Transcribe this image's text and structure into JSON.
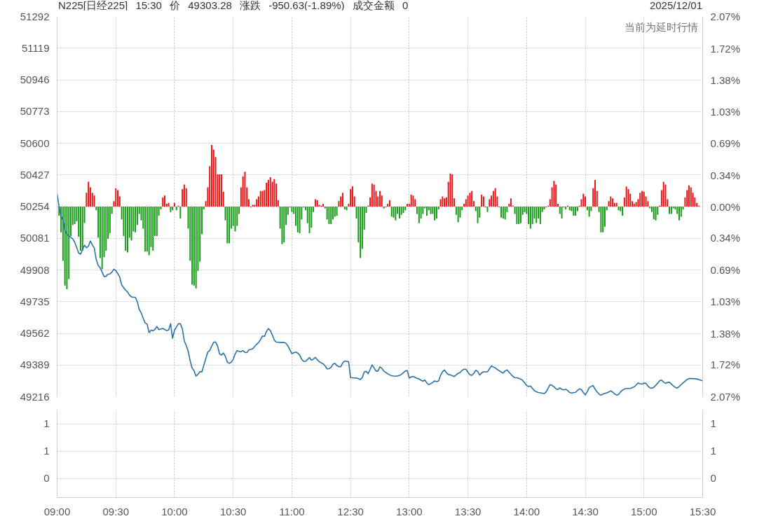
{
  "chart_data": [
    {
      "type": "bar",
      "title": "N225[日经225] 15:30 价 49303.28 涨跌 -950.63(-1.89%) 成交金额 0",
      "subtitle": "2025/12/01",
      "annotations": [
        "当前为延时行情"
      ],
      "categories": [
        null,
        null,
        null,
        null,
        null,
        null,
        null,
        null,
        null,
        null,
        null,
        null,
        null,
        null,
        null,
        null,
        null,
        null,
        null,
        null,
        null,
        null,
        null,
        null,
        null,
        null,
        null,
        null,
        null,
        null,
        null,
        null,
        null,
        null,
        null,
        null,
        null,
        null,
        null,
        null,
        null,
        null,
        null,
        null,
        null,
        null,
        null,
        null,
        null,
        null,
        null,
        null,
        null,
        null,
        null,
        null,
        null,
        null,
        null,
        null,
        null,
        null,
        null,
        null,
        null,
        null,
        null,
        null,
        null,
        null,
        null,
        null,
        null,
        null,
        null,
        null,
        null,
        null,
        null,
        null,
        null,
        null,
        null,
        null,
        null,
        null,
        null,
        null,
        null,
        null,
        null,
        null,
        null,
        null,
        null,
        null,
        null,
        null,
        null,
        null,
        null,
        null,
        null,
        null,
        null,
        null,
        null,
        null,
        null,
        null,
        null,
        null,
        null,
        null,
        null,
        null,
        null,
        null,
        null,
        null,
        null,
        null,
        null,
        null,
        null,
        null,
        null,
        null,
        null,
        null,
        null,
        null,
        null,
        null,
        null,
        null,
        null,
        null,
        null,
        null,
        null,
        null,
        null,
        null,
        null,
        null,
        null,
        null,
        null,
        null,
        null,
        null,
        null,
        null,
        null,
        null,
        null,
        null,
        null,
        null,
        null,
        null,
        null,
        null,
        null,
        null,
        null,
        null,
        null,
        null,
        null,
        null,
        null,
        null,
        null,
        null,
        null,
        null,
        null,
        null,
        null,
        null,
        null,
        null,
        null,
        null,
        null,
        null,
        null,
        null,
        null,
        null,
        null,
        null,
        null,
        null,
        null,
        null,
        null,
        null,
        null,
        null,
        null,
        null,
        null,
        null,
        null,
        null,
        null,
        null,
        null,
        null,
        null,
        null,
        null,
        null,
        null,
        null,
        null,
        null,
        null,
        null,
        null,
        null,
        null,
        null,
        null,
        null,
        null,
        null,
        null,
        null,
        null,
        null,
        null,
        null,
        null,
        null,
        null,
        null,
        null,
        null,
        null,
        null,
        null,
        null,
        null,
        null,
        null,
        null,
        null,
        null,
        null,
        null,
        null,
        null,
        null,
        null,
        null,
        null,
        null,
        null,
        null,
        null,
        null,
        null,
        null,
        null,
        null,
        null,
        null,
        null,
        null,
        null,
        null,
        null,
        null,
        null,
        null,
        null,
        null,
        null,
        null,
        null,
        null,
        null,
        null,
        null,
        null,
        null,
        null,
        null,
        null,
        null,
        null,
        null,
        null,
        null,
        null,
        null,
        null,
        null,
        null,
        null,
        null,
        null,
        null,
        null,
        null,
        null,
        null,
        null,
        null,
        null,
        null,
        null,
        null,
        null,
        null,
        null,
        null,
        null,
        null,
        null,
        null,
        null,
        null,
        null,
        null,
        null,
        null
      ],
      "ylim": [
        49216,
        51292
      ],
      "yticks": [
        49216,
        49389,
        49562,
        49735,
        49908,
        50081,
        50254,
        50427,
        50600,
        50773,
        50946,
        51119,
        51292
      ],
      "y2lim": [
        -2.07,
        2.07
      ],
      "y2ticks": [
        {
          "value": -2.07,
          "label": "2.07%"
        },
        {
          "value": -1.72,
          "label": "1.72%"
        },
        {
          "value": -1.38,
          "label": "1.38%"
        },
        {
          "value": -1.03,
          "label": "1.03%"
        },
        {
          "value": -0.69,
          "label": "0.69%"
        },
        {
          "value": -0.34,
          "label": "0.34%"
        },
        {
          "value": 0,
          "label": "0.00%"
        },
        {
          "value": 0.34,
          "label": "0.34%"
        },
        {
          "value": 0.69,
          "label": "0.69%"
        },
        {
          "value": 1.03,
          "label": "1.03%"
        },
        {
          "value": 1.38,
          "label": "1.38%"
        },
        {
          "value": 1.72,
          "label": "1.72%"
        },
        {
          "value": 2.07,
          "label": "2.07%"
        }
      ],
      "grid": true,
      "tick_labels": "y",
      "series": [
        {
          "axis": "y2",
          "color": "#ee1111",
          "values": [
            null,
            null,
            null,
            null,
            null,
            null,
            null,
            null,
            null,
            null,
            null,
            null,
            null,
            null,
            null,
            0.15,
            0.27,
            0.21,
            0.15,
            0.12,
            null,
            null,
            null,
            null,
            null,
            null,
            null,
            null,
            null,
            0.06,
            0.2,
            0.18,
            0.11,
            null,
            null,
            null,
            null,
            null,
            null,
            null,
            null,
            null,
            null,
            null,
            null,
            null,
            null,
            null,
            null,
            null,
            null,
            null,
            null,
            null,
            0.1,
            0.12,
            0.03,
            0.04,
            null,
            null,
            0.04,
            null,
            0.01,
            null,
            0.19,
            0.24,
            0.2,
            null,
            null,
            null,
            null,
            null,
            null,
            null,
            null,
            null,
            0.06,
            0.21,
            0.44,
            0.67,
            0.62,
            0.54,
            0.35,
            0.35,
            0.35,
            0.16,
            null,
            null,
            null,
            null,
            null,
            null,
            null,
            null,
            0.21,
            0.33,
            0.38,
            0.21,
            0.08,
            null,
            0.02,
            0.02,
            0.08,
            0.11,
            0.17,
            0.17,
            0.18,
            0.26,
            0.29,
            0.32,
            0.27,
            0.3,
            0.25,
            0.07,
            null,
            null,
            null,
            null,
            null,
            null,
            null,
            null,
            null,
            null,
            null,
            null,
            null,
            null,
            null,
            null,
            null,
            null,
            0.08,
            0.07,
            0.02,
            0.01,
            0.03,
            null,
            null,
            null,
            null,
            null,
            null,
            null,
            0.06,
            0.11,
            0.15,
            null,
            null,
            0.03,
            0.19,
            0.22,
            0.11,
            null,
            null,
            null,
            null,
            null,
            null,
            0.01,
            0.1,
            0.25,
            0.24,
            0.17,
            0.11,
            0.17,
            0.12,
            null,
            null,
            0.03,
            0.07,
            null,
            null,
            null,
            null,
            null,
            null,
            null,
            null,
            0.03,
            0.03,
            0.13,
            0.12,
            0.08,
            null,
            null,
            null,
            null,
            null,
            null,
            null,
            null,
            null,
            null,
            null,
            null,
            0.08,
            0.11,
            0.09,
            0.1,
            0.27,
            0.36,
            0.35,
            0.09,
            null,
            null,
            null,
            null,
            0.03,
            0.08,
            0.12,
            0.15,
            0.17,
            0.06,
            null,
            null,
            null,
            0.13,
            0.11,
            null,
            null,
            0.08,
            0.12,
            0.17,
            0.2,
            0.11,
            null,
            null,
            null,
            null,
            null,
            0.03,
            0.09,
            0.01,
            null,
            null,
            null,
            null,
            null,
            null,
            null,
            null,
            null,
            null,
            null,
            null,
            null,
            null,
            null,
            null,
            null,
            0.01,
            0.08,
            0.21,
            0.28,
            0.24,
            0.03,
            null,
            null,
            null,
            null,
            0.01,
            null,
            null,
            null,
            null,
            null,
            0.01,
            0.08,
            0.14,
            0.11,
            null,
            null,
            null,
            0.2,
            0.29,
            0.17,
            null,
            null,
            null,
            null,
            null,
            0.06,
            0.11,
            0.09,
            0.04,
            0.04,
            null,
            null,
            null,
            0.1,
            0.22,
            0.19,
            0.14,
            0.06,
            0.03,
            0.05,
            0.08,
            0.15,
            0.17,
            0.16,
            0.11,
            0.06,
            null,
            null,
            null,
            null,
            null,
            0.01,
            0.18,
            0.27,
            0.24,
            0.08,
            null,
            null,
            null,
            null,
            null,
            null,
            null,
            null,
            0.1,
            0.18,
            0.23,
            0.21,
            0.15,
            0.1,
            0.04,
            0.01,
            null,
            null
          ]
        },
        {
          "axis": "y2",
          "color": "#139a13",
          "values": [
            null,
            -0.1,
            -0.28,
            -0.59,
            -0.86,
            -0.9,
            -0.79,
            -0.32,
            -0.2,
            -0.19,
            -0.16,
            -0.33,
            -0.48,
            -0.48,
            -0.18,
            null,
            null,
            null,
            null,
            null,
            -0.04,
            -0.34,
            -0.56,
            -0.68,
            -0.55,
            -0.48,
            -0.35,
            -0.29,
            -0.08,
            null,
            null,
            null,
            null,
            -0.14,
            -0.32,
            -0.48,
            -0.5,
            -0.34,
            -0.37,
            -0.27,
            -0.28,
            -0.2,
            -0.08,
            -0.15,
            -0.24,
            -0.49,
            -0.49,
            -0.53,
            -0.44,
            -0.48,
            -0.32,
            -0.32,
            -0.1,
            -0.03,
            null,
            null,
            null,
            null,
            -0.06,
            -0.04,
            null,
            -0.04,
            null,
            -0.13,
            null,
            null,
            null,
            -0.24,
            -0.59,
            -0.85,
            -0.86,
            -0.89,
            -0.7,
            -0.6,
            -0.3,
            -0.03,
            null,
            null,
            null,
            null,
            null,
            null,
            null,
            null,
            null,
            null,
            -0.15,
            -0.4,
            -0.4,
            -0.24,
            -0.21,
            -0.27,
            -0.21,
            -0.08,
            null,
            null,
            null,
            null,
            null,
            -0.01,
            null,
            null,
            null,
            null,
            null,
            null,
            null,
            null,
            null,
            null,
            null,
            null,
            null,
            null,
            -0.24,
            -0.41,
            -0.39,
            -0.2,
            -0.09,
            -0.01,
            -0.06,
            -0.08,
            -0.21,
            -0.28,
            -0.29,
            -0.14,
            -0.01,
            -0.04,
            -0.18,
            -0.29,
            -0.23,
            -0.06,
            null,
            null,
            null,
            null,
            null,
            -0.02,
            -0.14,
            -0.19,
            -0.19,
            -0.14,
            -0.11,
            -0.1,
            null,
            null,
            null,
            -0.03,
            -0.04,
            null,
            null,
            null,
            null,
            -0.13,
            -0.39,
            -0.56,
            -0.46,
            -0.25,
            -0.07,
            null,
            null,
            null,
            null,
            null,
            null,
            null,
            null,
            -0.02,
            -0.01,
            null,
            null,
            -0.11,
            -0.12,
            -0.15,
            -0.08,
            -0.13,
            -0.09,
            -0.07,
            -0.04,
            null,
            null,
            null,
            null,
            null,
            -0.08,
            -0.18,
            -0.13,
            -0.08,
            -0.02,
            -0.1,
            -0.04,
            -0.08,
            -0.08,
            -0.15,
            -0.13,
            -0.03,
            null,
            null,
            null,
            null,
            null,
            null,
            null,
            null,
            -0.09,
            -0.17,
            -0.12,
            -0.04,
            null,
            null,
            null,
            null,
            null,
            null,
            -0.05,
            -0.18,
            -0.12,
            null,
            null,
            -0.01,
            -0.06,
            null,
            null,
            null,
            null,
            null,
            -0.01,
            -0.12,
            -0.13,
            -0.14,
            -0.06,
            null,
            null,
            null,
            -0.08,
            -0.19,
            -0.19,
            -0.18,
            -0.09,
            -0.06,
            -0.08,
            -0.19,
            -0.24,
            -0.19,
            -0.13,
            -0.18,
            -0.13,
            -0.19,
            -0.06,
            -0.03,
            -0.01,
            null,
            null,
            null,
            null,
            null,
            null,
            -0.08,
            -0.13,
            -0.01,
            -0.03,
            null,
            -0.04,
            -0.05,
            -0.1,
            -0.1,
            -0.05,
            null,
            null,
            null,
            null,
            -0.04,
            -0.11,
            -0.05,
            null,
            null,
            null,
            -0.06,
            -0.28,
            -0.28,
            -0.22,
            -0.04,
            null,
            null,
            null,
            null,
            null,
            -0.04,
            -0.05,
            -0.1,
            null,
            null,
            null,
            null,
            null,
            null,
            null,
            null,
            null,
            null,
            null,
            null,
            null,
            -0.02,
            -0.06,
            -0.14,
            -0.15,
            -0.09,
            null,
            null,
            null,
            null,
            null,
            -0.08,
            -0.08,
            -0.02,
            -0.03,
            -0.08,
            -0.15,
            -0.11,
            -0.03,
            null,
            null,
            null,
            null,
            null,
            null,
            null,
            null,
            null,
            null
          ]
        },
        {
          "type": "line",
          "color": "#2a72a6",
          "values": [
            50322,
            50254,
            50201,
            50181,
            50122,
            50103,
            50094,
            50086,
            50078,
            50059,
            50030,
            50001,
            49994,
            50020,
            50043,
            50029,
            50038,
            50066,
            50044,
            50028,
            49964,
            49933,
            49920,
            49897,
            49872,
            49873,
            49885,
            49886,
            49896,
            49912,
            49904,
            49888,
            49868,
            49827,
            49811,
            49798,
            49788,
            49771,
            49761,
            49759,
            49759,
            49734,
            49692,
            49673,
            49644,
            49619,
            49612,
            49566,
            49579,
            49576,
            49583,
            49600,
            49582,
            49585,
            49589,
            49583,
            49577,
            49580,
            49615,
            49535,
            49579,
            49597,
            49614,
            49614,
            49587,
            49521,
            49495,
            49465,
            49412,
            49373,
            49358,
            49329,
            49338,
            49353,
            49352,
            49388,
            49424,
            49459,
            49468,
            49492,
            49513,
            49515,
            49494,
            49450,
            49443,
            49455,
            49436,
            49405,
            49398,
            49404,
            49419,
            49450,
            49468,
            49463,
            49461,
            49468,
            49458,
            49457,
            49472,
            49474,
            49478,
            49490,
            49502,
            49512,
            49528,
            49548,
            49545,
            49572,
            49588,
            49577,
            49554,
            49526,
            49514,
            49513,
            49512,
            49512,
            49512,
            49507,
            49493,
            49472,
            49451,
            49456,
            49460,
            49454,
            49443,
            49420,
            49409,
            49409,
            49419,
            49430,
            49416,
            49421,
            49431,
            49418,
            49407,
            49401,
            49395,
            49384,
            49368,
            49369,
            49376,
            49393,
            49399,
            49386,
            49380,
            49380,
            49401,
            49411,
            49409,
            49407,
            49320,
            49319,
            49318,
            49318,
            49314,
            49310,
            49321,
            49352,
            49354,
            49342,
            49365,
            49390,
            49374,
            49356,
            49356,
            49379,
            49371,
            49356,
            49348,
            49341,
            49335,
            49331,
            49329,
            49328,
            49330,
            49332,
            49338,
            49347,
            49356,
            49359,
            49318,
            49324,
            49327,
            49321,
            49316,
            49313,
            49306,
            49301,
            49307,
            49291,
            49282,
            49287,
            49294,
            49302,
            49298,
            49302,
            49332,
            49352,
            49362,
            49347,
            49337,
            49335,
            49331,
            49326,
            49335,
            49344,
            49348,
            49360,
            49366,
            49366,
            49349,
            49336,
            49333,
            49343,
            49361,
            49353,
            49334,
            49346,
            49352,
            49352,
            49352,
            49368,
            49384,
            49378,
            49373,
            49365,
            49358,
            49351,
            49345,
            49357,
            49362,
            49350,
            49338,
            49327,
            49320,
            49319,
            49316,
            49312,
            49304,
            49292,
            49277,
            49272,
            49274,
            49261,
            49249,
            49243,
            49239,
            49237,
            49235,
            49233,
            49242,
            49262,
            49282,
            49278,
            49270,
            49259,
            49255,
            49264,
            49256,
            49253,
            49256,
            49250,
            49239,
            49236,
            49238,
            49240,
            49250,
            49259,
            49255,
            49239,
            49226,
            49243,
            49266,
            49272,
            49277,
            49257,
            49243,
            49230,
            49224,
            49230,
            49234,
            49237,
            49242,
            49248,
            49241,
            49231,
            49225,
            49228,
            49242,
            49252,
            49258,
            49261,
            49261,
            49261,
            49266,
            49270,
            49280,
            49291,
            49287,
            49285,
            49290,
            49289,
            49274,
            49265,
            49262,
            49267,
            49278,
            49290,
            49303,
            49307,
            49296,
            49289,
            49294,
            49295,
            49285,
            49275,
            49267,
            49263,
            49272,
            49282,
            49292,
            49301,
            49310,
            49315,
            49315,
            49315,
            49314,
            49313,
            49310,
            49306,
            49303
          ]
        }
      ]
    },
    {
      "type": "bar",
      "categories": [
        "09:00",
        null,
        null,
        null,
        null,
        null,
        null,
        null,
        null,
        null,
        null,
        null,
        null,
        null,
        null,
        null,
        null,
        null,
        null,
        null,
        null,
        null,
        null,
        null,
        null,
        null,
        null,
        null,
        null,
        null,
        "09:30",
        null,
        null,
        null,
        null,
        null,
        null,
        null,
        null,
        null,
        null,
        null,
        null,
        null,
        null,
        null,
        null,
        null,
        null,
        null,
        null,
        null,
        null,
        null,
        null,
        null,
        null,
        null,
        null,
        null,
        "10:00",
        null,
        null,
        null,
        null,
        null,
        null,
        null,
        null,
        null,
        null,
        null,
        null,
        null,
        null,
        null,
        null,
        null,
        null,
        null,
        null,
        null,
        null,
        null,
        null,
        null,
        null,
        null,
        null,
        null,
        "10:30",
        null,
        null,
        null,
        null,
        null,
        null,
        null,
        null,
        null,
        null,
        null,
        null,
        null,
        null,
        null,
        null,
        null,
        null,
        null,
        null,
        null,
        null,
        null,
        null,
        null,
        null,
        null,
        null,
        null,
        "11:00",
        null,
        null,
        null,
        null,
        null,
        null,
        null,
        null,
        null,
        null,
        null,
        null,
        null,
        null,
        null,
        null,
        null,
        null,
        null,
        null,
        null,
        null,
        null,
        null,
        null,
        null,
        null,
        null,
        null,
        "12:30",
        null,
        null,
        null,
        null,
        null,
        null,
        null,
        null,
        null,
        null,
        null,
        null,
        null,
        null,
        null,
        null,
        null,
        null,
        null,
        null,
        null,
        null,
        null,
        null,
        null,
        null,
        null,
        null,
        null,
        "13:00",
        null,
        null,
        null,
        null,
        null,
        null,
        null,
        null,
        null,
        null,
        null,
        null,
        null,
        null,
        null,
        null,
        null,
        null,
        null,
        null,
        null,
        null,
        null,
        null,
        null,
        null,
        null,
        null,
        null,
        "13:30",
        null,
        null,
        null,
        null,
        null,
        null,
        null,
        null,
        null,
        null,
        null,
        null,
        null,
        null,
        null,
        null,
        null,
        null,
        null,
        null,
        null,
        null,
        null,
        null,
        null,
        null,
        null,
        null,
        null,
        "14:00",
        null,
        null,
        null,
        null,
        null,
        null,
        null,
        null,
        null,
        null,
        null,
        null,
        null,
        null,
        null,
        null,
        null,
        null,
        null,
        null,
        null,
        null,
        null,
        null,
        null,
        null,
        null,
        null,
        null,
        "14:30",
        null,
        null,
        null,
        null,
        null,
        null,
        null,
        null,
        null,
        null,
        null,
        null,
        null,
        null,
        null,
        null,
        null,
        null,
        null,
        null,
        null,
        null,
        null,
        null,
        null,
        null,
        null,
        null,
        null,
        "15:00",
        null,
        null,
        null,
        null,
        null,
        null,
        null,
        null,
        null,
        null,
        null,
        null,
        null,
        null,
        null,
        null,
        null,
        null,
        null,
        null,
        null,
        null,
        null,
        null,
        null,
        null,
        null,
        null,
        null,
        "15:30"
      ],
      "ylim": [
        -0.35,
        1.25
      ],
      "yticks": [
        0,
        {
          "value": 0.5,
          "label": "1"
        },
        {
          "value": 1,
          "label": "1"
        }
      ],
      "y2lim": [
        -0.35,
        1.25
      ],
      "y2ticks": [
        0,
        {
          "value": 0.5,
          "label": "1"
        },
        {
          "value": 1,
          "label": "1"
        }
      ],
      "grid": true
    }
  ]
}
